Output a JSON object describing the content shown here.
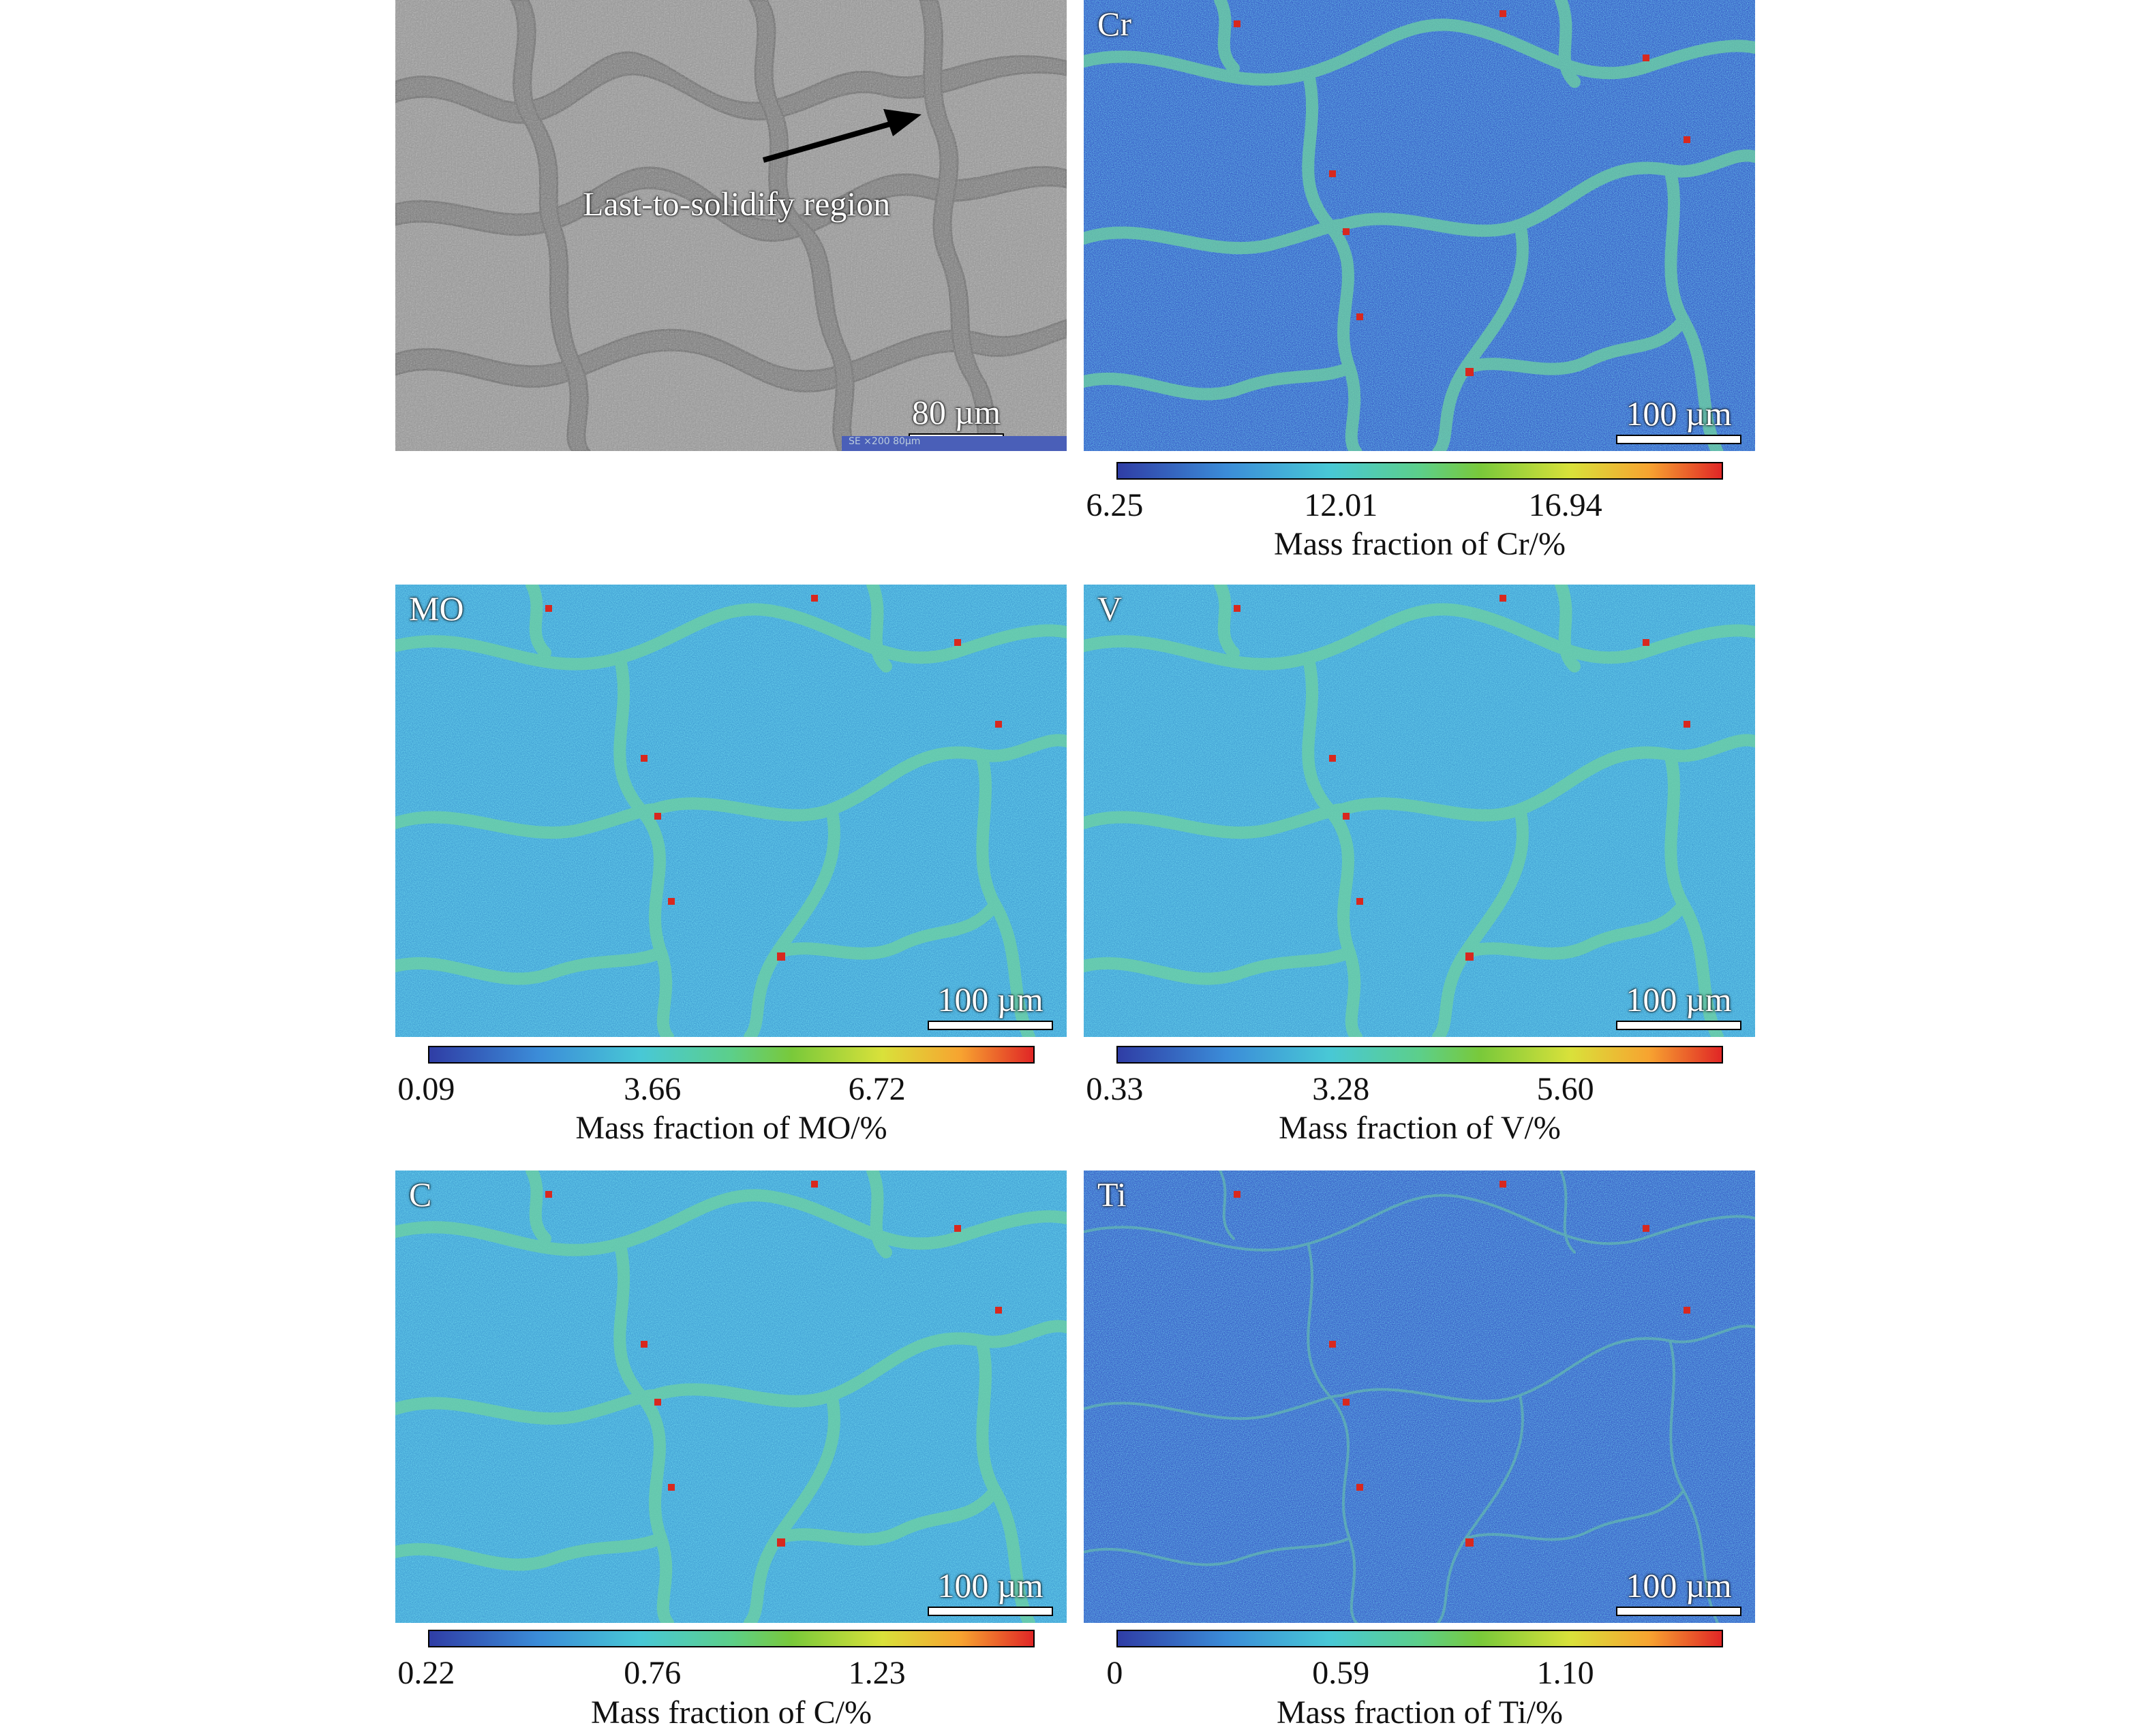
{
  "sem_panel": {
    "arrow_label": "Last-to-solidify region",
    "scale_bar": "80 µm",
    "footer": "SE  ×200   80µm"
  },
  "maps": [
    {
      "tag": "Cr",
      "scale_bar": "100 µm",
      "ticks": [
        "6.25",
        "12.01",
        "16.94"
      ],
      "axis_label": "Mass fraction of Cr/%"
    },
    {
      "tag": "MO",
      "scale_bar": "100 µm",
      "ticks": [
        "0.09",
        "3.66",
        "6.72"
      ],
      "axis_label": "Mass fraction of MO/%"
    },
    {
      "tag": "V",
      "scale_bar": "100 µm",
      "ticks": [
        "0.33",
        "3.28",
        "5.60"
      ],
      "axis_label": "Mass fraction of V/%"
    },
    {
      "tag": "C",
      "scale_bar": "100 µm",
      "ticks": [
        "0.22",
        "0.76",
        "1.23"
      ],
      "axis_label": "Mass fraction of C/%"
    },
    {
      "tag": "Ti",
      "scale_bar": "100 µm",
      "ticks": [
        "0",
        "0.59",
        "1.10"
      ],
      "axis_label": "Mass fraction of Ti/%"
    }
  ],
  "colors": {
    "map_background": "#3d7fd0",
    "boundary": "#6ed1a0",
    "hotspot": "#d8281e",
    "sem_grey": "#8c8c8c"
  }
}
